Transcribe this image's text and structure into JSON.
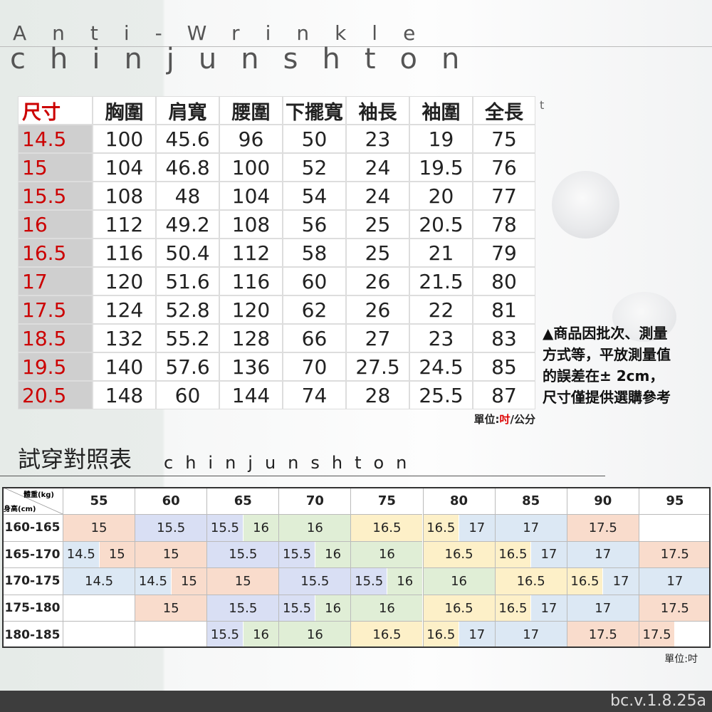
{
  "header": {
    "tagline": "Anti-Wrinkle",
    "brand": "chinjunshton",
    "fragment": "t"
  },
  "size_table": {
    "columns": [
      "尺寸",
      "胸圍",
      "肩寬",
      "腰圍",
      "下擺寬",
      "袖長",
      "袖圍",
      "全長"
    ],
    "rows": [
      [
        14.5,
        100,
        45.6,
        96,
        50,
        23,
        19,
        75
      ],
      [
        15,
        104,
        46.8,
        100,
        52,
        24,
        19.5,
        76
      ],
      [
        15.5,
        108,
        48,
        104,
        54,
        24,
        20,
        77
      ],
      [
        16,
        112,
        49.2,
        108,
        56,
        25,
        20.5,
        78
      ],
      [
        16.5,
        116,
        50.4,
        112,
        58,
        25,
        21,
        79
      ],
      [
        17,
        120,
        51.6,
        116,
        60,
        26,
        21.5,
        80
      ],
      [
        17.5,
        124,
        52.8,
        120,
        62,
        26,
        22,
        81
      ],
      [
        18.5,
        132,
        55.2,
        128,
        66,
        27,
        23,
        83
      ],
      [
        19.5,
        140,
        57.6,
        136,
        70,
        27.5,
        24.5,
        85
      ],
      [
        20.5,
        148,
        60,
        144,
        74,
        28,
        25.5,
        87
      ]
    ],
    "unit": [
      "單位:",
      "吋",
      "/公分"
    ]
  },
  "note": {
    "lines": [
      "▲商品因批次、測量",
      "方式等，平放測量值",
      "的誤差在± 2cm，",
      "尺寸僅提供選購參考"
    ]
  },
  "fit_chart": {
    "title": "試穿對照表",
    "brand": "chinjunshton",
    "weight_label": "體重(kg)",
    "height_label": "身高(cm)",
    "weights": [
      55,
      60,
      65,
      70,
      75,
      80,
      85,
      90,
      95
    ],
    "size_colors": {
      "14.5": "#dce8f4",
      "15": "#f9dccc",
      "15.5": "#d9dff4",
      "16": "#e0eed6",
      "16.5": "#fdf0c8",
      "17": "#dce8f4",
      "17.5": "#f9dccc"
    },
    "rows": [
      {
        "height": "160-165",
        "cells": [
          [
            "15"
          ],
          [
            "15.5"
          ],
          [
            "15.5",
            "16"
          ],
          [
            "16"
          ],
          [
            "16.5"
          ],
          [
            "16.5",
            "17"
          ],
          [
            "17"
          ],
          [
            "17.5"
          ],
          []
        ]
      },
      {
        "height": "165-170",
        "cells": [
          [
            "14.5",
            "15"
          ],
          [
            "15"
          ],
          [
            "15.5"
          ],
          [
            "15.5",
            "16"
          ],
          [
            "16"
          ],
          [
            "16.5"
          ],
          [
            "16.5",
            "17"
          ],
          [
            "17"
          ],
          [
            "17.5"
          ]
        ]
      },
      {
        "height": "170-175",
        "cells": [
          [
            "14.5"
          ],
          [
            "14.5",
            "15"
          ],
          [
            "15"
          ],
          [
            "15.5"
          ],
          [
            "15.5",
            "16"
          ],
          [
            "16"
          ],
          [
            "16.5"
          ],
          [
            "16.5",
            "17"
          ],
          [
            "17"
          ]
        ]
      },
      {
        "height": "175-180",
        "cells": [
          [],
          [
            "15"
          ],
          [
            "15.5"
          ],
          [
            "15.5",
            "16"
          ],
          [
            "16"
          ],
          [
            "16.5"
          ],
          [
            "16.5",
            "17"
          ],
          [
            "17"
          ],
          [
            "17.5"
          ]
        ]
      },
      {
        "height": "180-185",
        "cells": [
          [],
          [],
          [
            "15.5",
            "16"
          ],
          [
            "16"
          ],
          [
            "16.5"
          ],
          [
            "16.5",
            "17"
          ],
          [
            "17"
          ],
          [
            "17.5"
          ],
          [
            "17.5",
            null
          ]
        ]
      }
    ],
    "unit": "單位:吋"
  },
  "footer": {
    "version": "bc.v.1.8.25a"
  }
}
